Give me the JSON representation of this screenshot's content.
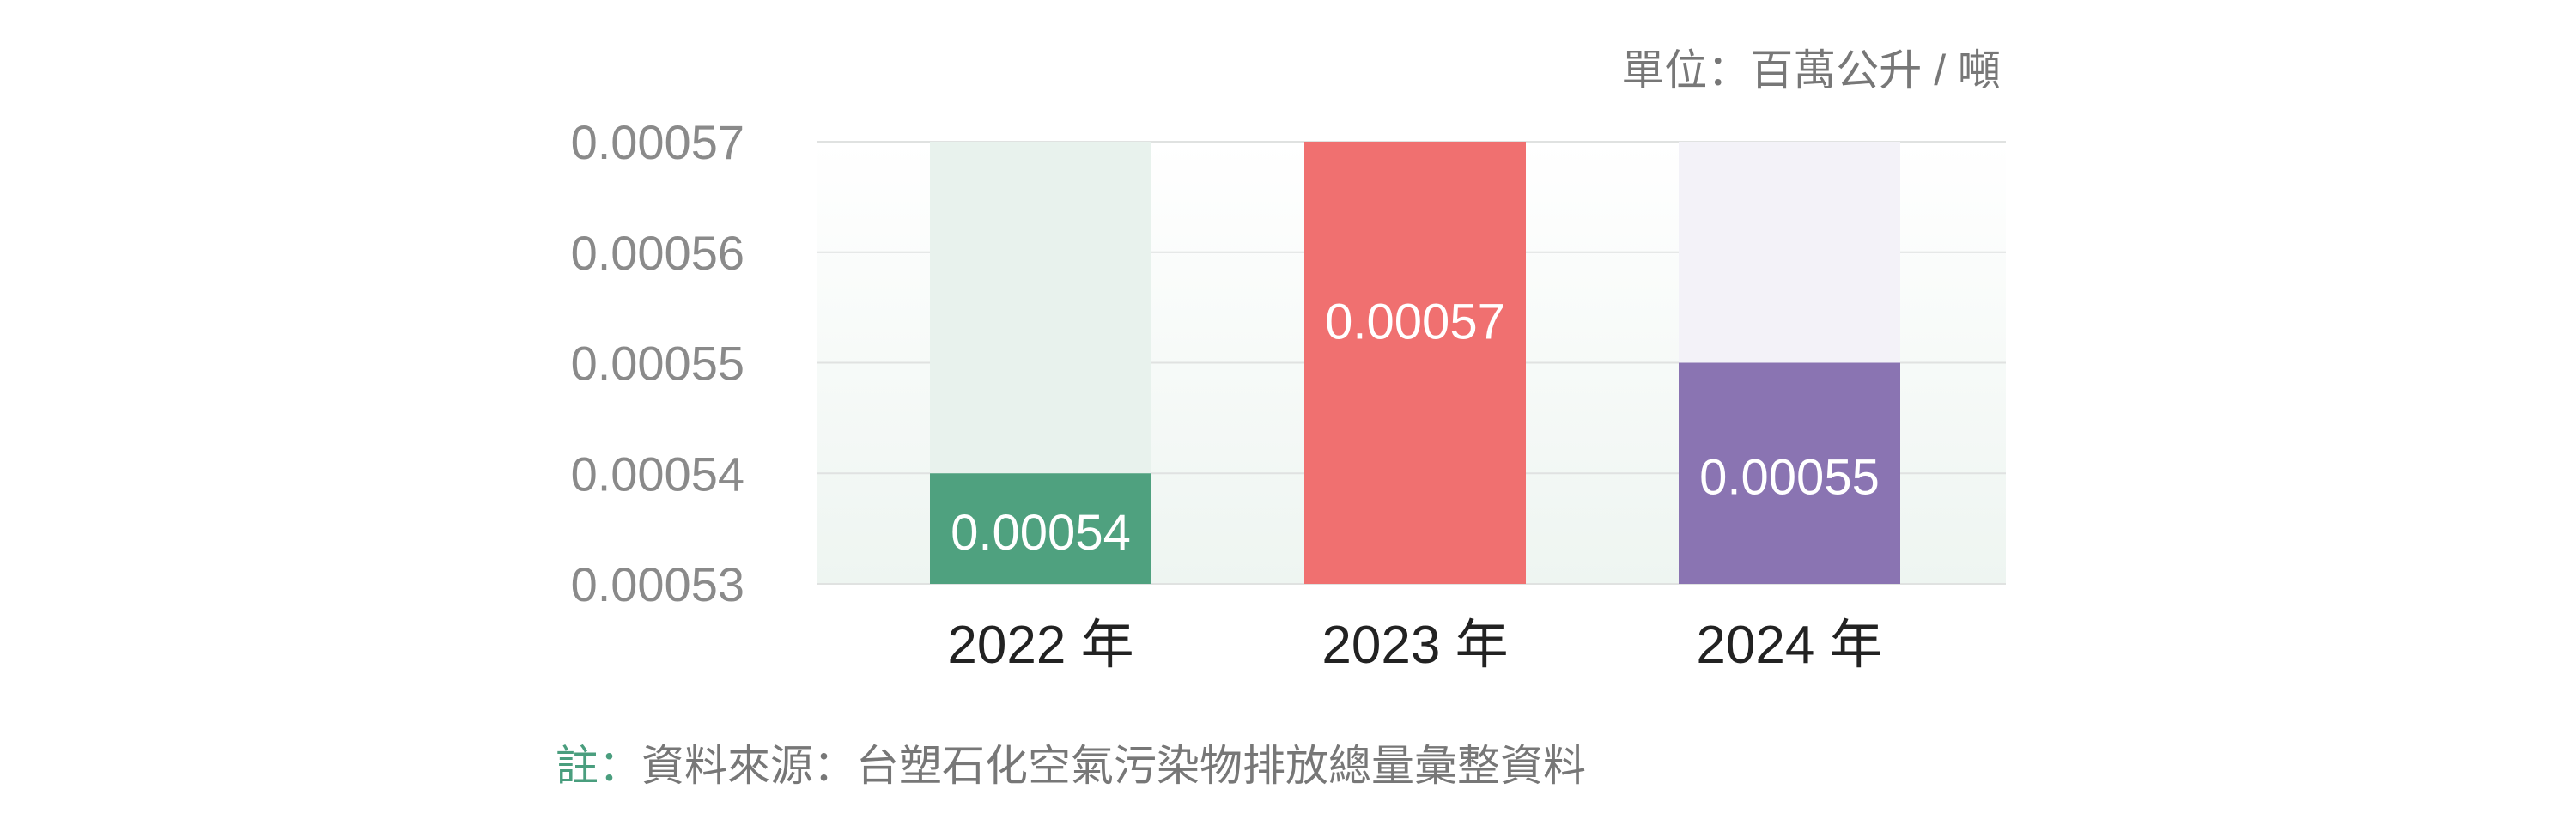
{
  "unit_label": "單位：百萬公升 / 噸",
  "footnote": {
    "mark": "註：",
    "text": "資料來源：台塑石化空氣污染物排放總量彙整資料"
  },
  "chart_data": {
    "type": "bar",
    "title": "",
    "xlabel": "",
    "ylabel": "單位：百萬公升 / 噸",
    "categories": [
      "2022 年",
      "2023 年",
      "2024 年"
    ],
    "values": [
      0.00054,
      0.00057,
      0.00055
    ],
    "value_labels": [
      "0.00054",
      "0.00057",
      "0.00055"
    ],
    "ylim": [
      0.00053,
      0.00057
    ],
    "yticks": [
      0.00053,
      0.00054,
      0.00055,
      0.00056,
      0.00057
    ],
    "ytick_labels": [
      "0.00053",
      "0.00054",
      "0.00055",
      "0.00056",
      "0.00057"
    ],
    "grid": true,
    "colors": [
      "#4fa17f",
      "#f07070",
      "#8a74b2"
    ],
    "track_colors": [
      "#e8f2ed",
      "#fde8e8",
      "#f3f2f8"
    ]
  }
}
